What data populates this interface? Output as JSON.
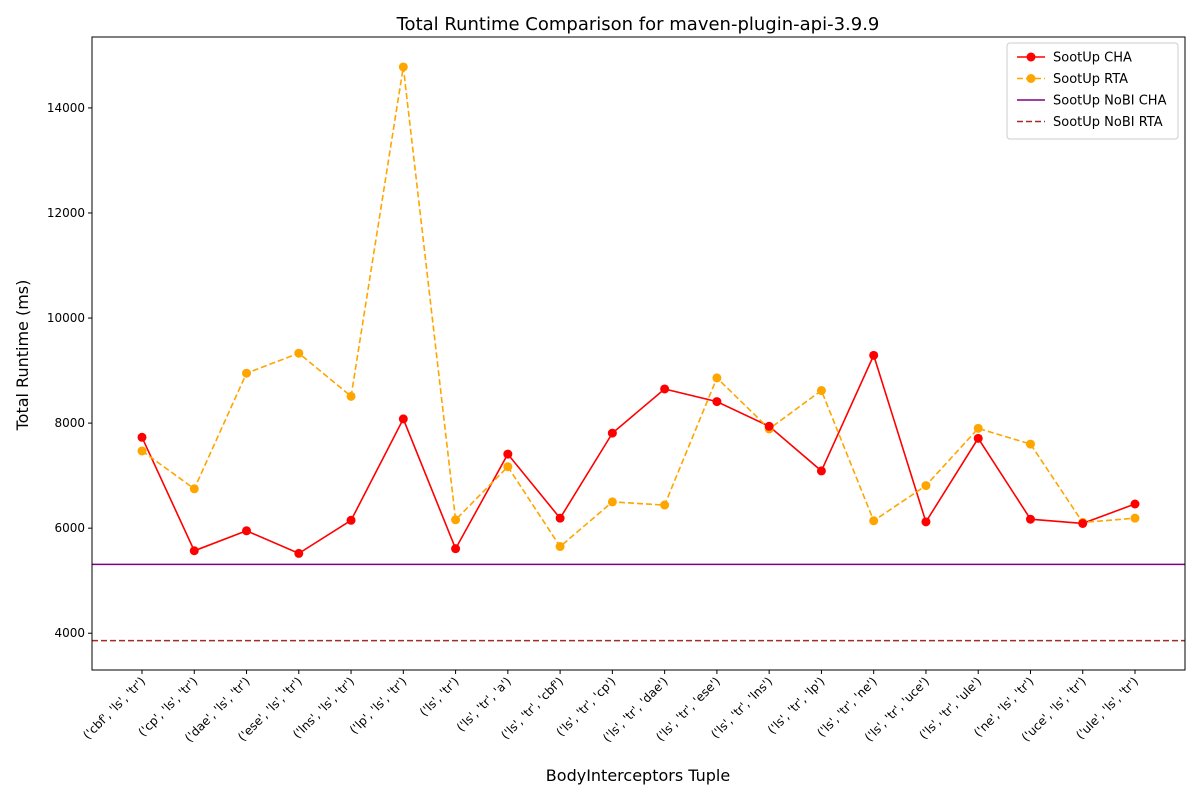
{
  "chart_data": {
    "type": "line",
    "title": "Total Runtime Comparison for maven-plugin-api-3.9.9",
    "xlabel": "BodyInterceptors Tuple",
    "ylabel": "Total Runtime (ms)",
    "ylim": [
      3300,
      15350
    ],
    "yticks": [
      4000,
      6000,
      8000,
      10000,
      12000,
      14000
    ],
    "grid": false,
    "legend_position": "top-right",
    "categories": [
      "('cbf', 'ls', 'tr')",
      "('cp', 'ls', 'tr')",
      "('dae', 'ls', 'tr')",
      "('ese', 'ls', 'tr')",
      "('lns', 'ls', 'tr')",
      "('lp', 'ls', 'tr')",
      "('ls', 'tr')",
      "('ls', 'tr', 'a')",
      "('ls', 'tr', 'cbf')",
      "('ls', 'tr', 'cp')",
      "('ls', 'tr', 'dae')",
      "('ls', 'tr', 'ese')",
      "('ls', 'tr', 'lns')",
      "('ls', 'tr', 'lp')",
      "('ls', 'tr', 'ne')",
      "('ls', 'tr', 'uce')",
      "('ls', 'tr', 'ule')",
      "('ne', 'ls', 'tr')",
      "('uce', 'ls', 'tr')",
      "('ule', 'ls', 'tr')"
    ],
    "series": [
      {
        "name": "SootUp CHA",
        "color": "#ff0000",
        "style": "solid-marker",
        "values": [
          7730,
          5570,
          5950,
          5520,
          6150,
          8080,
          5610,
          7410,
          6190,
          7810,
          8650,
          8410,
          7940,
          7090,
          9290,
          6120,
          7710,
          6170,
          6090,
          6460
        ]
      },
      {
        "name": "SootUp RTA",
        "color": "#ffa500",
        "style": "dashed-marker",
        "values": [
          7470,
          6750,
          8950,
          9330,
          8510,
          14780,
          6160,
          7170,
          5650,
          6500,
          6440,
          8860,
          7890,
          8620,
          6140,
          6810,
          7900,
          7600,
          6110,
          6190
        ]
      },
      {
        "name": "SootUp NoBI CHA",
        "color": "#800080",
        "style": "hline-solid",
        "value": 5310
      },
      {
        "name": "SootUp NoBI RTA",
        "color": "#a52a2a",
        "style": "hline-dashed",
        "value": 3860
      }
    ]
  }
}
